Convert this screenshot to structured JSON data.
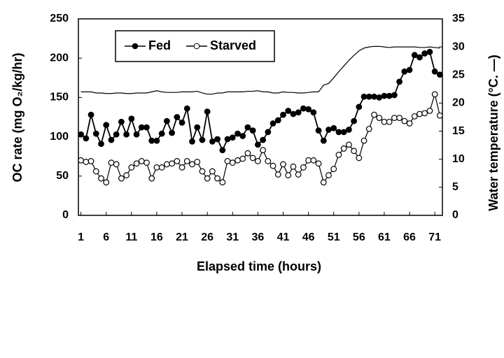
{
  "chart_data": {
    "type": "line",
    "x_label": "Elapsed time (hours)",
    "y_label": "OC rate (mg O₂/kg/hr)",
    "y2_label": "Water temperature (°C. —)",
    "x": [
      1,
      2,
      3,
      4,
      5,
      6,
      7,
      8,
      9,
      10,
      11,
      12,
      13,
      14,
      15,
      16,
      17,
      18,
      19,
      20,
      21,
      22,
      23,
      24,
      25,
      26,
      27,
      28,
      29,
      30,
      31,
      32,
      33,
      34,
      35,
      36,
      37,
      38,
      39,
      40,
      41,
      42,
      43,
      44,
      45,
      46,
      47,
      48,
      49,
      50,
      51,
      52,
      53,
      54,
      55,
      56,
      57,
      58,
      59,
      60,
      61,
      62,
      63,
      64,
      65,
      66,
      67,
      68,
      69,
      70,
      71,
      72
    ],
    "xlim": [
      0.5,
      72.5
    ],
    "xticks": [
      1,
      6,
      11,
      16,
      21,
      26,
      31,
      36,
      41,
      46,
      51,
      56,
      61,
      66,
      71
    ],
    "ylim": [
      0,
      250
    ],
    "yticks": [
      0,
      50,
      100,
      150,
      200,
      250
    ],
    "y2lim": [
      0,
      35
    ],
    "y2ticks": [
      0,
      5,
      10,
      15,
      20,
      25,
      30,
      35
    ],
    "legend": "upper left",
    "series": [
      {
        "name": "Fed",
        "color": "#000000",
        "marker": "filled",
        "values": [
          103,
          98,
          128,
          104,
          91,
          115,
          96,
          103,
          119,
          103,
          123,
          103,
          112,
          112,
          95,
          95,
          104,
          120,
          105,
          125,
          118,
          136,
          94,
          112,
          96,
          132,
          94,
          97,
          83,
          97,
          99,
          104,
          101,
          112,
          108,
          90,
          96,
          106,
          117,
          121,
          128,
          133,
          129,
          131,
          136,
          135,
          131,
          108,
          95,
          109,
          111,
          106,
          106,
          109,
          120,
          138,
          151,
          151,
          151,
          150,
          152,
          152,
          153,
          170,
          183,
          185,
          204,
          201,
          206,
          208,
          183,
          179
        ]
      },
      {
        "name": "Starved",
        "color": "#000000",
        "marker": "open",
        "values": [
          70,
          68,
          69,
          56,
          47,
          42,
          67,
          65,
          47,
          51,
          61,
          66,
          69,
          67,
          47,
          61,
          61,
          65,
          66,
          69,
          61,
          69,
          65,
          68,
          56,
          47,
          56,
          47,
          42,
          69,
          67,
          70,
          72,
          79,
          73,
          69,
          83,
          69,
          63,
          52,
          65,
          51,
          62,
          52,
          61,
          70,
          70,
          66,
          42,
          51,
          59,
          77,
          85,
          90,
          82,
          73,
          95,
          110,
          128,
          124,
          119,
          119,
          124,
          124,
          120,
          117,
          126,
          129,
          130,
          133,
          154,
          127
        ]
      },
      {
        "color": "#000000",
        "axis": "y2",
        "values": [
          22,
          22,
          22,
          21.8,
          21.8,
          21.7,
          21.7,
          21.8,
          21.8,
          21.7,
          21.7,
          21.8,
          21.8,
          21.8,
          22,
          22.2,
          22,
          21.9,
          21.9,
          21.9,
          22,
          22,
          22,
          22.1,
          21.8,
          21.6,
          21.6,
          21.8,
          21.8,
          22,
          22,
          22,
          22,
          22.1,
          22.1,
          22.2,
          22,
          22,
          21.8,
          21.8,
          22,
          21.9,
          21.9,
          21.8,
          21.8,
          21.9,
          22,
          22,
          23.2,
          23.5,
          24.5,
          25.6,
          26.6,
          27.6,
          28.5,
          29.3,
          29.8,
          30,
          30.1,
          30.1,
          30,
          29.9,
          30,
          30,
          30,
          30,
          30,
          29.9,
          29.9,
          30,
          29.9,
          29.8
        ]
      }
    ]
  }
}
